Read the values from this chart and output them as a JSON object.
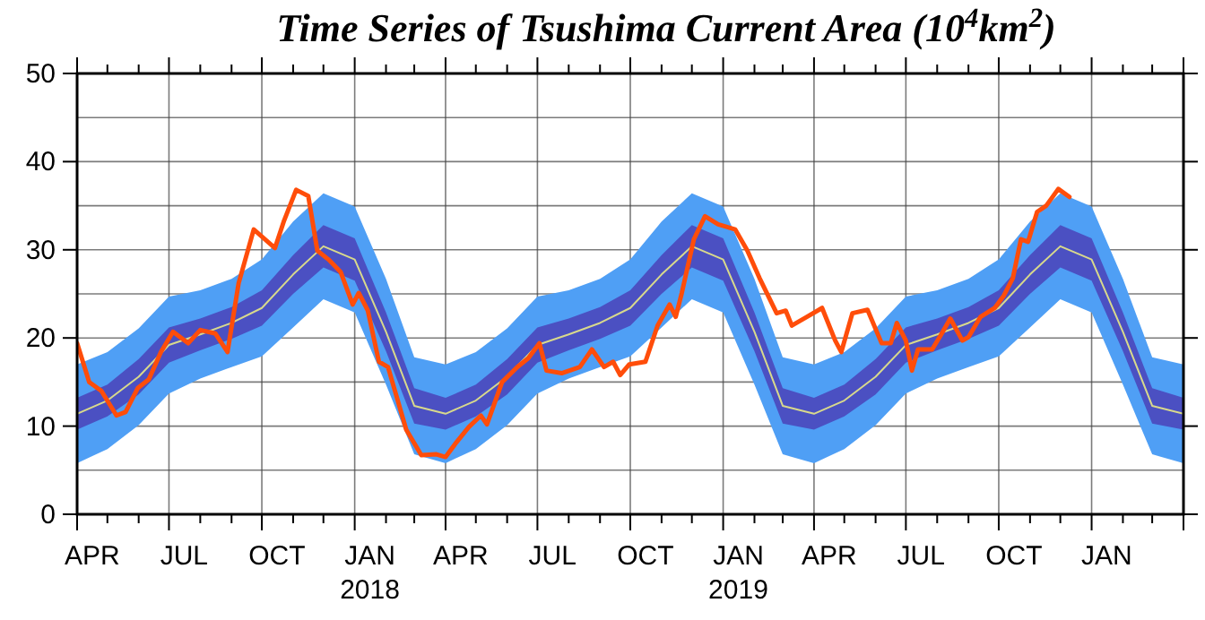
{
  "chart_data": {
    "type": "line",
    "title": "Time Series of Tsushima Current Area (10$^{4}$km$^{2}$)",
    "xlim": [
      "2017-04-01",
      "2020-04-01"
    ],
    "ylim": [
      0,
      50
    ],
    "yticks": [
      0,
      {
        "value": 5,
        "label": null
      },
      10,
      {
        "value": 15,
        "label": null
      },
      20,
      {
        "value": 25,
        "label": null
      },
      30,
      {
        "value": 35,
        "label": null
      },
      40,
      {
        "value": 45,
        "label": null
      },
      50
    ],
    "xticks": [
      {
        "value": "2017-04-01",
        "label": null
      },
      {
        "value": "2017-05-01",
        "label": null
      },
      {
        "value": "2017-06-01",
        "label": null
      },
      {
        "value": "2017-07-01",
        "label": null
      },
      {
        "value": "2017-08-01",
        "label": null
      },
      {
        "value": "2017-09-01",
        "label": null
      },
      {
        "value": "2017-10-01",
        "label": null
      },
      {
        "value": "2017-11-01",
        "label": null
      },
      {
        "value": "2017-12-01",
        "label": null
      },
      {
        "value": "2018-01-01",
        "label": null
      },
      {
        "value": "2018-02-01",
        "label": null
      },
      {
        "value": "2018-03-01",
        "label": null
      },
      {
        "value": "2018-04-01",
        "label": null
      },
      {
        "value": "2018-05-01",
        "label": null
      },
      {
        "value": "2018-06-01",
        "label": null
      },
      {
        "value": "2018-07-01",
        "label": null
      },
      {
        "value": "2018-08-01",
        "label": null
      },
      {
        "value": "2018-09-01",
        "label": null
      },
      {
        "value": "2018-10-01",
        "label": null
      },
      {
        "value": "2018-11-01",
        "label": null
      },
      {
        "value": "2018-12-01",
        "label": null
      },
      {
        "value": "2019-01-01",
        "label": null
      },
      {
        "value": "2019-02-01",
        "label": null
      },
      {
        "value": "2019-03-01",
        "label": null
      },
      {
        "value": "2019-04-01",
        "label": null
      },
      {
        "value": "2019-05-01",
        "label": null
      },
      {
        "value": "2019-06-01",
        "label": null
      },
      {
        "value": "2019-07-01",
        "label": null
      },
      {
        "value": "2019-08-01",
        "label": null
      },
      {
        "value": "2019-09-01",
        "label": null
      },
      {
        "value": "2019-10-01",
        "label": null
      },
      {
        "value": "2019-11-01",
        "label": null
      },
      {
        "value": "2019-12-01",
        "label": null
      },
      {
        "value": "2020-01-01",
        "label": null
      },
      {
        "value": "2020-02-01",
        "label": null
      },
      {
        "value": "2020-03-01",
        "label": null
      },
      {
        "value": "2020-04-01",
        "label": null
      },
      {
        "value": "2017-04-16",
        "label": "APR"
      },
      {
        "value": "2017-07-16",
        "label": "JUL"
      },
      {
        "value": "2017-10-16",
        "label": "OCT"
      },
      {
        "value": "2018-01-16",
        "label": "JAN 2018"
      },
      {
        "value": "2018-04-16",
        "label": "APR"
      },
      {
        "value": "2018-07-16",
        "label": "JUL"
      },
      {
        "value": "2018-10-16",
        "label": "OCT"
      },
      {
        "value": "2019-01-16",
        "label": "JAN 2019"
      },
      {
        "value": "2019-04-16",
        "label": "APR"
      },
      {
        "value": "2019-07-16",
        "label": "JUL"
      },
      {
        "value": "2019-10-16",
        "label": "OCT"
      },
      {
        "value": "2020-01-16",
        "label": "JAN"
      }
    ],
    "grid": true,
    "x": [
      "2017-04-01",
      "2017-05-01",
      "2017-06-01",
      "2017-07-01",
      "2017-08-01",
      "2017-09-01",
      "2017-10-01",
      "2017-11-01",
      "2017-12-01",
      "2018-01-01",
      "2018-02-01",
      "2018-03-01",
      "2018-04-01",
      "2018-05-01",
      "2018-06-01",
      "2018-07-01",
      "2018-08-01",
      "2018-09-01",
      "2018-10-01",
      "2018-11-01",
      "2018-12-01",
      "2019-01-01",
      "2019-02-01",
      "2019-03-01",
      "2019-04-01",
      "2019-05-01",
      "2019-06-01",
      "2019-07-01",
      "2019-08-01",
      "2019-09-01",
      "2019-10-01",
      "2019-11-01",
      "2019-12-01",
      "2020-01-01",
      "2020-02-01",
      "2020-03-01",
      "2020-04-01"
    ],
    "series": [
      {
        "color": "#4f9ff5",
        "values": [
          null,
          null,
          null,
          null,
          null,
          null,
          null,
          null,
          null,
          null,
          null,
          null,
          null,
          null,
          null,
          null,
          null,
          null,
          null,
          null,
          null,
          null,
          null,
          null,
          null,
          null,
          null,
          null,
          null,
          null,
          null,
          null,
          null,
          null,
          null,
          null,
          null
        ],
        "lower": [
          5.8,
          7.4,
          10.1,
          13.7,
          15.4,
          16.7,
          17.9,
          21.2,
          24.4,
          22.9,
          14.7,
          6.8,
          5.8,
          7.4,
          10.1,
          13.7,
          15.4,
          16.7,
          17.9,
          21.2,
          24.4,
          22.9,
          14.7,
          6.8,
          5.8,
          7.4,
          10.1,
          13.7,
          15.4,
          16.7,
          17.9,
          21.2,
          24.4,
          22.9,
          14.7,
          6.8,
          5.8
        ],
        "upper": [
          17.0,
          18.4,
          21.1,
          24.7,
          25.4,
          26.7,
          28.9,
          33.2,
          36.4,
          34.9,
          26.7,
          17.8,
          17.0,
          18.4,
          21.1,
          24.7,
          25.4,
          26.7,
          28.9,
          33.2,
          36.4,
          34.9,
          26.7,
          17.8,
          17.0,
          18.4,
          21.1,
          24.7,
          25.4,
          26.7,
          28.9,
          33.2,
          36.4,
          34.9,
          26.7,
          17.8,
          17.0
        ]
      },
      {
        "color": "#4b50c2",
        "values": [
          null,
          null,
          null,
          null,
          null,
          null,
          null,
          null,
          null,
          null,
          null,
          null,
          null,
          null,
          null,
          null,
          null,
          null,
          null,
          null,
          null,
          null,
          null,
          null,
          null,
          null,
          null,
          null,
          null,
          null,
          null,
          null,
          null,
          null,
          null,
          null,
          null
        ],
        "lower": [
          9.6,
          11.1,
          13.6,
          17.2,
          18.6,
          19.9,
          21.4,
          25.0,
          28.0,
          26.5,
          18.5,
          10.3,
          9.6,
          11.1,
          13.6,
          17.2,
          18.6,
          19.9,
          21.4,
          25.0,
          28.0,
          26.5,
          18.5,
          10.3,
          9.6,
          11.1,
          13.6,
          17.2,
          18.6,
          19.9,
          21.4,
          25.0,
          28.0,
          26.5,
          18.5,
          10.3,
          9.6
        ],
        "upper": [
          13.2,
          14.7,
          17.6,
          21.2,
          22.2,
          23.5,
          25.4,
          29.4,
          32.8,
          31.3,
          22.9,
          14.3,
          13.2,
          14.7,
          17.6,
          21.2,
          22.2,
          23.5,
          25.4,
          29.4,
          32.8,
          31.3,
          22.9,
          14.3,
          13.2,
          14.7,
          17.6,
          21.2,
          22.2,
          23.5,
          25.4,
          29.4,
          32.8,
          31.3,
          22.9,
          14.3,
          13.2
        ]
      },
      {
        "color": "#d8d98c",
        "values": [
          11.4,
          12.9,
          15.6,
          19.2,
          20.4,
          21.7,
          23.4,
          27.2,
          30.4,
          28.9,
          20.7,
          12.3,
          11.4,
          12.9,
          15.6,
          19.2,
          20.4,
          21.7,
          23.4,
          27.2,
          30.4,
          28.9,
          20.7,
          12.3,
          11.4,
          12.9,
          15.6,
          19.2,
          20.4,
          21.7,
          23.4,
          27.2,
          30.4,
          28.9,
          20.7,
          12.3,
          11.4
        ]
      },
      {
        "color": "#ff4d0a",
        "x": [
          "2017-04-01",
          "2017-04-13",
          "2017-04-25",
          "2017-05-10",
          "2017-05-19",
          "2017-05-31",
          "2017-06-11",
          "2017-06-23",
          "2017-07-05",
          "2017-07-20",
          "2017-08-01",
          "2017-08-16",
          "2017-08-28",
          "2017-09-08",
          "2017-09-23",
          "2017-10-14",
          "2017-10-23",
          "2017-11-04",
          "2017-11-16",
          "2017-11-25",
          "2017-12-06",
          "2017-12-18",
          "2017-12-30",
          "2018-01-05",
          "2018-01-14",
          "2018-01-25",
          "2018-02-03",
          "2018-02-21",
          "2018-03-08",
          "2018-03-23",
          "2018-04-01",
          "2018-04-12",
          "2018-04-24",
          "2018-05-06",
          "2018-05-12",
          "2018-05-27",
          "2018-06-11",
          "2018-06-22",
          "2018-07-03",
          "2018-07-10",
          "2018-07-25",
          "2018-08-12",
          "2018-08-24",
          "2018-09-05",
          "2018-09-14",
          "2018-09-21",
          "2018-09-30",
          "2018-10-16",
          "2018-10-28",
          "2018-11-09",
          "2018-11-15",
          "2018-11-21",
          "2018-12-03",
          "2018-12-14",
          "2018-12-27",
          "2019-01-13",
          "2019-01-25",
          "2019-02-06",
          "2019-02-23",
          "2019-03-04",
          "2019-03-10",
          "2019-03-25",
          "2019-04-09",
          "2019-04-22",
          "2019-04-28",
          "2019-05-09",
          "2019-05-24",
          "2019-06-07",
          "2019-06-16",
          "2019-06-22",
          "2019-07-01",
          "2019-07-07",
          "2019-07-13",
          "2019-07-27",
          "2019-08-05",
          "2019-08-14",
          "2019-08-26",
          "2019-09-01",
          "2019-09-13",
          "2019-09-27",
          "2019-10-06",
          "2019-10-15",
          "2019-10-23",
          "2019-10-30",
          "2019-11-08",
          "2019-11-17",
          "2019-11-29",
          "2019-12-10"
        ],
        "values": [
          19.4,
          15.0,
          14.0,
          11.2,
          11.6,
          14.3,
          15.3,
          18.4,
          20.7,
          19.4,
          20.9,
          20.5,
          18.4,
          26.2,
          32.3,
          30.2,
          33.3,
          36.8,
          36.1,
          29.9,
          28.9,
          27.5,
          23.8,
          25.1,
          23.1,
          17.3,
          16.7,
          9.6,
          6.7,
          6.8,
          6.5,
          8.2,
          9.9,
          11.2,
          10.2,
          15.0,
          16.7,
          17.7,
          19.4,
          16.3,
          16.0,
          16.7,
          18.7,
          16.7,
          17.3,
          15.8,
          17.0,
          17.3,
          21.4,
          23.8,
          22.4,
          25.1,
          31.2,
          33.8,
          32.9,
          32.3,
          29.9,
          26.8,
          22.8,
          23.1,
          21.4,
          22.4,
          23.4,
          19.7,
          18.4,
          22.8,
          23.2,
          19.4,
          19.4,
          21.7,
          19.7,
          16.3,
          18.7,
          18.7,
          20.4,
          22.2,
          19.7,
          20.1,
          22.4,
          23.4,
          24.8,
          26.8,
          31.2,
          30.9,
          34.3,
          35.0,
          36.9,
          36.0
        ]
      }
    ]
  }
}
